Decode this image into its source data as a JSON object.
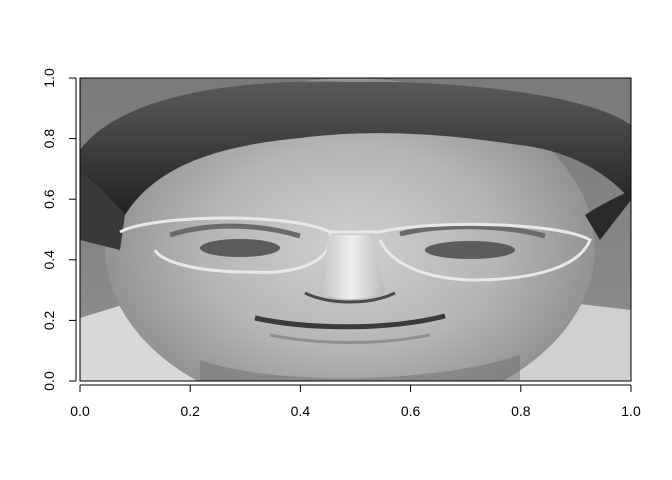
{
  "chart_data": {
    "type": "heatmap",
    "title": "",
    "xlabel": "",
    "ylabel": "",
    "xlim": [
      0,
      1
    ],
    "ylim": [
      0,
      1
    ],
    "x_ticks": [
      "0.0",
      "0.2",
      "0.4",
      "0.6",
      "0.8",
      "1.0"
    ],
    "y_ticks": [
      "0.0",
      "0.2",
      "0.4",
      "0.6",
      "0.8",
      "1.0"
    ],
    "grid": false,
    "legend": "none",
    "colormap": "grayscale",
    "image_description": "grayscale face image"
  }
}
